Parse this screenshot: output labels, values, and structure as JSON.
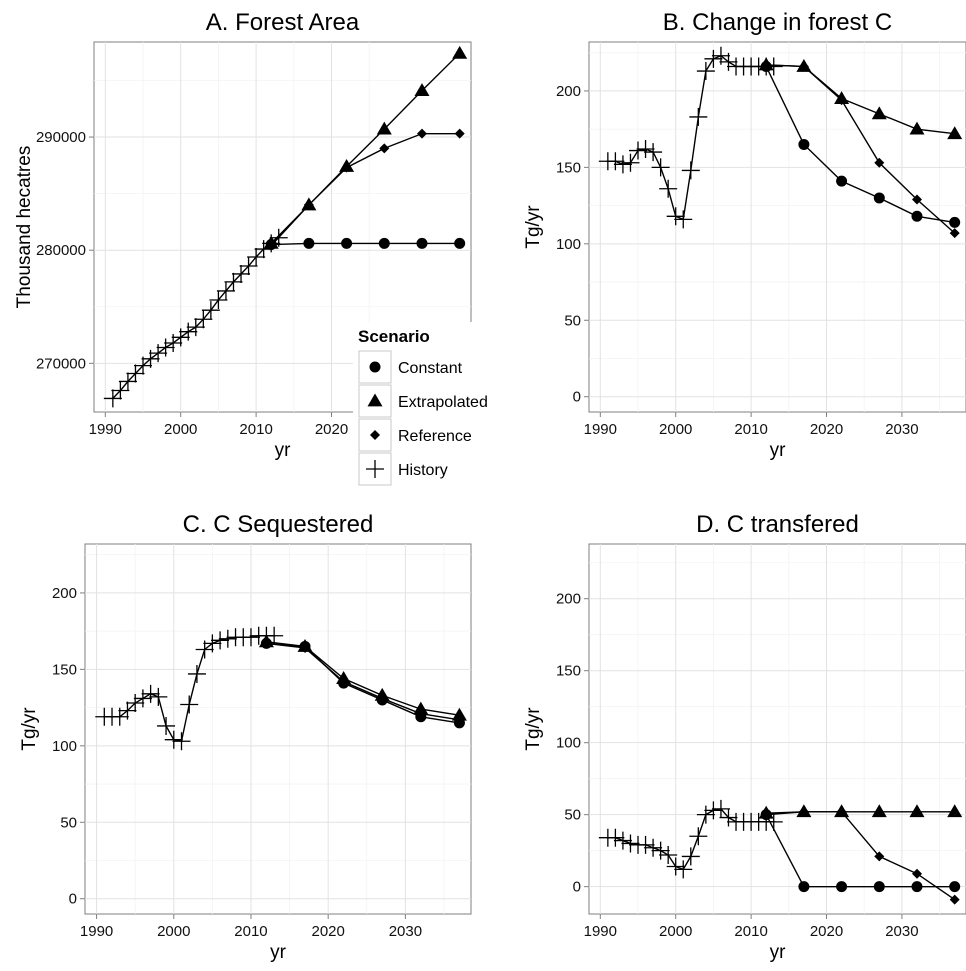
{
  "legend": {
    "title": "Scenario",
    "items": [
      {
        "label": "Constant",
        "shape": "circle"
      },
      {
        "label": "Extrapolated",
        "shape": "triangle"
      },
      {
        "label": "Reference",
        "shape": "diamond"
      },
      {
        "label": "History",
        "shape": "plus"
      }
    ]
  },
  "chart_data": [
    {
      "type": "line",
      "title": "A. Forest Area",
      "xlabel": "yr",
      "ylabel": "Thousand hecatres",
      "xlim": [
        1988.5,
        2038.5
      ],
      "ylim": [
        265700,
        298400
      ],
      "xticks": [
        1990,
        2000,
        2010,
        2020
      ],
      "xtick_labels": [
        "1990",
        "2000",
        "2010",
        "2020"
      ],
      "yticks": [
        270000,
        280000,
        290000
      ],
      "ytick_labels": [
        "270000",
        "280000",
        "290000"
      ],
      "grid": true,
      "series": [
        {
          "name": "History",
          "shape": "plus",
          "x": [
            1991,
            1992,
            1993,
            1994,
            1995,
            1996,
            1997,
            1998,
            1999,
            2000,
            2001,
            2002,
            2003,
            2004,
            2005,
            2006,
            2007,
            2008,
            2009,
            2010,
            2011,
            2012,
            2013
          ],
          "y": [
            266900,
            267600,
            268400,
            269100,
            269800,
            270400,
            270900,
            271400,
            271800,
            272300,
            272800,
            273200,
            273900,
            274700,
            275600,
            276400,
            277200,
            277900,
            278600,
            279400,
            280100,
            280600,
            281100
          ]
        },
        {
          "name": "Constant",
          "shape": "circle",
          "x": [
            2012,
            2017,
            2022,
            2027,
            2032,
            2037
          ],
          "y": [
            280500,
            280600,
            280600,
            280600,
            280600,
            280600
          ]
        },
        {
          "name": "Extrapolated",
          "shape": "triangle",
          "x": [
            2012,
            2017,
            2022,
            2027,
            2032,
            2037
          ],
          "y": [
            280600,
            284000,
            287400,
            290700,
            294100,
            297400
          ]
        },
        {
          "name": "Reference",
          "shape": "diamond",
          "x": [
            2012,
            2017,
            2022,
            2027,
            2032,
            2037
          ],
          "y": [
            280400,
            284000,
            287300,
            289000,
            290300,
            290300
          ]
        }
      ]
    },
    {
      "type": "line",
      "title": "B. Change in forest C",
      "xlabel": "yr",
      "ylabel": "Tg/yr",
      "xlim": [
        1988.5,
        2038.5
      ],
      "ylim": [
        -10,
        232
      ],
      "xticks": [
        1990,
        2000,
        2010,
        2020,
        2030
      ],
      "xtick_labels": [
        "1990",
        "2000",
        "2010",
        "2020",
        "2030"
      ],
      "yticks": [
        0,
        50,
        100,
        150,
        200
      ],
      "ytick_labels": [
        "0",
        "50",
        "100",
        "150",
        "200"
      ],
      "grid": true,
      "series": [
        {
          "name": "History",
          "shape": "plus",
          "x": [
            1991,
            1992,
            1993,
            1994,
            1995,
            1996,
            1997,
            1998,
            1999,
            2000,
            2001,
            2002,
            2003,
            2004,
            2005,
            2006,
            2007,
            2008,
            2009,
            2010,
            2011,
            2012,
            2013
          ],
          "y": [
            154,
            154,
            152,
            153,
            161,
            162,
            160,
            150,
            136,
            118,
            116,
            148,
            183,
            213,
            221,
            223,
            219,
            216,
            216,
            216,
            216,
            216,
            216
          ]
        },
        {
          "name": "Constant",
          "shape": "circle",
          "x": [
            2012,
            2017,
            2022,
            2027,
            2032,
            2037
          ],
          "y": [
            216,
            165,
            141,
            130,
            118,
            114
          ]
        },
        {
          "name": "Extrapolated",
          "shape": "triangle",
          "x": [
            2012,
            2017,
            2022,
            2027,
            2032,
            2037
          ],
          "y": [
            217,
            216,
            195,
            185,
            175,
            172
          ]
        },
        {
          "name": "Reference",
          "shape": "diamond",
          "x": [
            2012,
            2017,
            2022,
            2027,
            2032,
            2037
          ],
          "y": [
            217,
            216,
            194,
            153,
            129,
            107
          ]
        }
      ]
    },
    {
      "type": "line",
      "title": "C. C Sequestered",
      "xlabel": "yr",
      "ylabel": "Tg/yr",
      "xlim": [
        1988.5,
        2038.5
      ],
      "ylim": [
        -10,
        232
      ],
      "xticks": [
        1990,
        2000,
        2010,
        2020,
        2030
      ],
      "xtick_labels": [
        "1990",
        "2000",
        "2010",
        "2020",
        "2030"
      ],
      "yticks": [
        0,
        50,
        100,
        150,
        200
      ],
      "ytick_labels": [
        "0",
        "50",
        "100",
        "150",
        "200"
      ],
      "grid": true,
      "series": [
        {
          "name": "History",
          "shape": "plus",
          "x": [
            1991,
            1992,
            1993,
            1994,
            1995,
            1996,
            1997,
            1998,
            1999,
            2000,
            2001,
            2002,
            2003,
            2004,
            2005,
            2006,
            2007,
            2008,
            2009,
            2010,
            2011,
            2012,
            2013
          ],
          "y": [
            119,
            119,
            119,
            123,
            128,
            131,
            134,
            132,
            113,
            104,
            103,
            127,
            147,
            163,
            167,
            169,
            170,
            171,
            171,
            171,
            172,
            172,
            172
          ]
        },
        {
          "name": "Constant",
          "shape": "circle",
          "x": [
            2012,
            2017,
            2022,
            2027,
            2032,
            2037
          ],
          "y": [
            167,
            165,
            141,
            130,
            119,
            115
          ]
        },
        {
          "name": "Extrapolated",
          "shape": "triangle",
          "x": [
            2012,
            2017,
            2022,
            2027,
            2032,
            2037
          ],
          "y": [
            168,
            165,
            144,
            133,
            124,
            120
          ]
        },
        {
          "name": "Reference",
          "shape": "diamond",
          "x": [
            2012,
            2017,
            2022,
            2027,
            2032,
            2037
          ],
          "y": [
            167,
            164,
            142,
            131,
            121,
            117
          ]
        }
      ]
    },
    {
      "type": "line",
      "title": "D. C transfered",
      "xlabel": "yr",
      "ylabel": "Tg/yr",
      "xlim": [
        1988.5,
        2038.5
      ],
      "ylim": [
        -19,
        238
      ],
      "xticks": [
        1990,
        2000,
        2010,
        2020,
        2030
      ],
      "xtick_labels": [
        "1990",
        "2000",
        "2010",
        "2020",
        "2030"
      ],
      "yticks": [
        0,
        50,
        100,
        150,
        200
      ],
      "ytick_labels": [
        "0",
        "50",
        "100",
        "150",
        "200"
      ],
      "grid": true,
      "series": [
        {
          "name": "History",
          "shape": "plus",
          "x": [
            1991,
            1992,
            1993,
            1994,
            1995,
            1996,
            1997,
            1998,
            1999,
            2000,
            2001,
            2002,
            2003,
            2004,
            2005,
            2006,
            2007,
            2008,
            2009,
            2010,
            2011,
            2012,
            2013
          ],
          "y": [
            34,
            34,
            32,
            30,
            29,
            29,
            27,
            25,
            22,
            14,
            12,
            21,
            35,
            50,
            53,
            54,
            48,
            45,
            45,
            45,
            45,
            45,
            45
          ]
        },
        {
          "name": "Constant",
          "shape": "circle",
          "x": [
            2012,
            2017,
            2022,
            2027,
            2032,
            2037
          ],
          "y": [
            50,
            0,
            0,
            0,
            0,
            0
          ]
        },
        {
          "name": "Extrapolated",
          "shape": "triangle",
          "x": [
            2012,
            2017,
            2022,
            2027,
            2032,
            2037
          ],
          "y": [
            51,
            52,
            52,
            52,
            52,
            52
          ]
        },
        {
          "name": "Reference",
          "shape": "diamond",
          "x": [
            2012,
            2017,
            2022,
            2027,
            2032,
            2037
          ],
          "y": [
            50,
            52,
            52,
            21,
            9,
            -9
          ]
        }
      ]
    }
  ]
}
